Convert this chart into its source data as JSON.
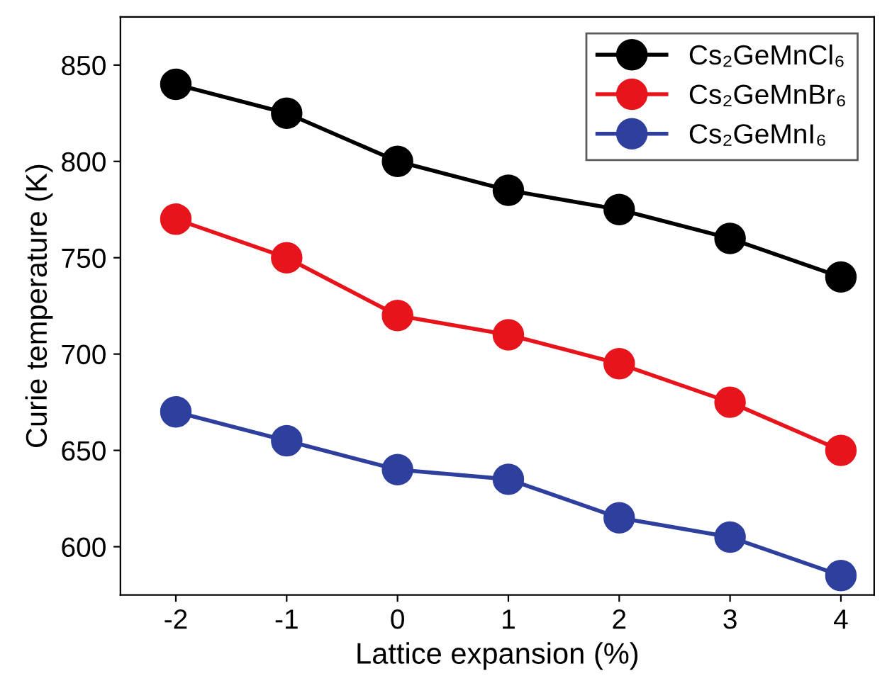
{
  "chart_data": {
    "type": "line",
    "xlabel": "Lattice expansion (%)",
    "ylabel": "Curie temperature (K)",
    "x": [
      -2,
      -1,
      0,
      1,
      2,
      3,
      4
    ],
    "series": [
      {
        "name": "Cs₂GeMnCl₆",
        "color": "#000000",
        "values": [
          840,
          825,
          800,
          785,
          775,
          760,
          740
        ]
      },
      {
        "name": "Cs₂GeMnBr₆",
        "color": "#e8141c",
        "values": [
          770,
          750,
          720,
          710,
          695,
          675,
          650
        ]
      },
      {
        "name": "Cs₂GeMnI₆",
        "color": "#2e3f9e",
        "values": [
          670,
          655,
          640,
          635,
          615,
          605,
          585
        ]
      }
    ],
    "xlim": [
      -2.5,
      4.3
    ],
    "ylim": [
      575,
      875
    ],
    "xticks": [
      -2,
      -1,
      0,
      1,
      2,
      3,
      4
    ],
    "yticks": [
      600,
      650,
      700,
      750,
      800,
      850
    ],
    "grid": false,
    "legend": "top right",
    "marker": "circle",
    "line_style": "solid"
  }
}
